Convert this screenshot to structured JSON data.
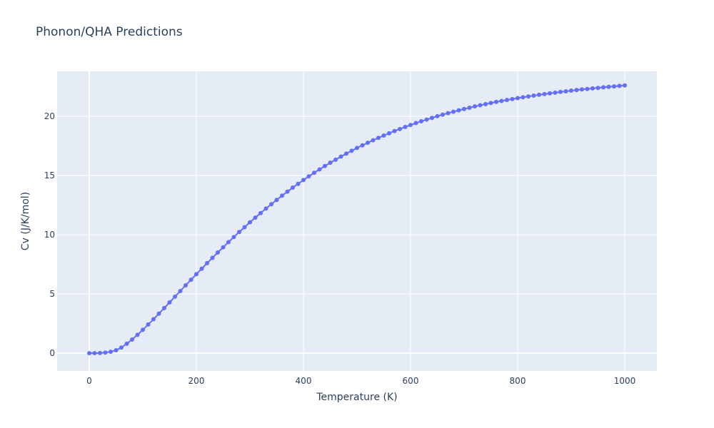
{
  "chart_data": {
    "type": "line",
    "title": "Phonon/QHA Predictions",
    "xlabel": "Temperature (K)",
    "ylabel": "Cv (J/K/mol)",
    "xlim": [
      -60,
      1060
    ],
    "ylim": [
      -1.5,
      23.8
    ],
    "xticks": [
      0,
      200,
      400,
      600,
      800,
      1000
    ],
    "yticks": [
      0,
      5,
      10,
      15,
      20
    ],
    "grid": true,
    "series": [
      {
        "color": "#636efa",
        "mode": "lines+markers",
        "x": [
          0,
          10,
          20,
          30,
          40,
          50,
          60,
          70,
          80,
          90,
          100,
          110,
          120,
          130,
          140,
          150,
          160,
          170,
          180,
          190,
          200,
          210,
          220,
          230,
          240,
          250,
          260,
          270,
          280,
          290,
          300,
          310,
          320,
          330,
          340,
          350,
          360,
          370,
          380,
          390,
          400,
          410,
          420,
          430,
          440,
          450,
          460,
          470,
          480,
          490,
          500,
          510,
          520,
          530,
          540,
          550,
          560,
          570,
          580,
          590,
          600,
          610,
          620,
          630,
          640,
          650,
          660,
          670,
          680,
          690,
          700,
          710,
          720,
          730,
          740,
          750,
          760,
          770,
          780,
          790,
          800,
          810,
          820,
          830,
          840,
          850,
          860,
          870,
          880,
          890,
          900,
          910,
          920,
          930,
          940,
          950,
          960,
          970,
          980,
          990,
          1000
        ],
        "y": [
          0,
          0.002,
          0.01,
          0.05,
          0.12,
          0.25,
          0.47,
          0.8,
          1.15,
          1.55,
          1.97,
          2.42,
          2.87,
          3.34,
          3.81,
          4.29,
          4.77,
          5.25,
          5.73,
          6.2,
          6.67,
          7.13,
          7.6,
          8.05,
          8.5,
          8.94,
          9.38,
          9.81,
          10.23,
          10.64,
          11.05,
          11.44,
          11.83,
          12.21,
          12.58,
          12.94,
          13.3,
          13.64,
          13.98,
          14.3,
          14.62,
          14.93,
          15.23,
          15.52,
          15.8,
          16.08,
          16.34,
          16.6,
          16.85,
          17.09,
          17.33,
          17.55,
          17.77,
          17.98,
          18.18,
          18.38,
          18.57,
          18.76,
          18.93,
          19.1,
          19.27,
          19.43,
          19.58,
          19.73,
          19.87,
          20.01,
          20.14,
          20.27,
          20.39,
          20.51,
          20.62,
          20.73,
          20.84,
          20.94,
          21.03,
          21.13,
          21.22,
          21.3,
          21.38,
          21.46,
          21.54,
          21.61,
          21.68,
          21.75,
          21.82,
          21.88,
          21.94,
          22,
          22.06,
          22.11,
          22.17,
          22.22,
          22.27,
          22.31,
          22.36,
          22.4,
          22.45,
          22.49,
          22.53,
          22.57,
          22.61
        ]
      }
    ]
  }
}
